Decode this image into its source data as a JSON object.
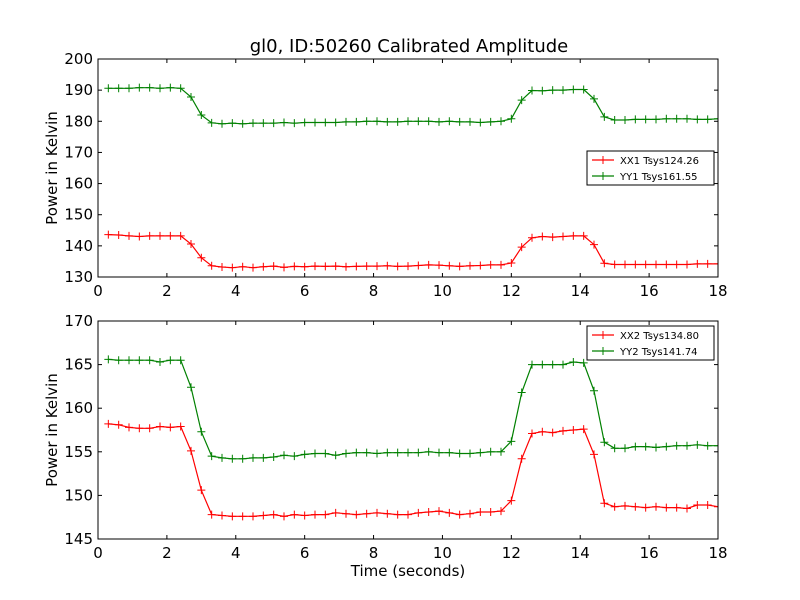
{
  "chart_data": [
    {
      "type": "line",
      "title": "gl0, ID:50260 Calibrated Amplitude",
      "xlabel": "",
      "ylabel": "Power in Kelvin",
      "xlim": [
        0,
        18
      ],
      "ylim": [
        130,
        200
      ],
      "xticks": [
        0,
        2,
        4,
        6,
        8,
        10,
        12,
        14,
        16,
        18
      ],
      "yticks": [
        130,
        140,
        150,
        160,
        170,
        180,
        190,
        200
      ],
      "legend_position": "right",
      "x": [
        0.3,
        0.6,
        0.9,
        1.2,
        1.5,
        1.8,
        2.1,
        2.4,
        2.7,
        3.0,
        3.3,
        3.6,
        3.9,
        4.2,
        4.5,
        4.8,
        5.1,
        5.4,
        5.7,
        6.0,
        6.3,
        6.6,
        6.9,
        7.2,
        7.5,
        7.8,
        8.1,
        8.4,
        8.7,
        9.0,
        9.3,
        9.6,
        9.9,
        10.2,
        10.5,
        10.8,
        11.1,
        11.4,
        11.7,
        12.0,
        12.3,
        12.6,
        12.9,
        13.2,
        13.5,
        13.8,
        14.1,
        14.4,
        14.7,
        15.0,
        15.3,
        15.6,
        15.9,
        16.2,
        16.5,
        16.8,
        17.1,
        17.4,
        17.7,
        18.0
      ],
      "series": [
        {
          "name": "XX1 Tsys124.26",
          "color": "#ff0000",
          "values": [
            143.6,
            143.5,
            143.2,
            143.0,
            143.2,
            143.2,
            143.2,
            143.2,
            140.6,
            136.2,
            133.6,
            133.2,
            133.0,
            133.3,
            133.0,
            133.3,
            133.5,
            133.1,
            133.4,
            133.3,
            133.5,
            133.4,
            133.5,
            133.3,
            133.4,
            133.5,
            133.5,
            133.6,
            133.4,
            133.5,
            133.7,
            133.9,
            133.8,
            133.6,
            133.4,
            133.6,
            133.7,
            133.9,
            133.9,
            134.5,
            139.6,
            142.6,
            143.0,
            142.8,
            143.0,
            143.2,
            143.2,
            140.4,
            134.4,
            134.0,
            134.0,
            134.0,
            134.0,
            134.0,
            134.0,
            134.0,
            134.0,
            134.2,
            134.2,
            134.2
          ]
        },
        {
          "name": "YY1 Tsys161.55",
          "color": "#008000",
          "values": [
            190.6,
            190.6,
            190.6,
            190.8,
            190.8,
            190.6,
            190.8,
            190.6,
            187.8,
            182.0,
            179.5,
            179.2,
            179.4,
            179.2,
            179.4,
            179.4,
            179.4,
            179.6,
            179.4,
            179.6,
            179.6,
            179.6,
            179.6,
            179.8,
            179.8,
            180.0,
            180.0,
            179.8,
            179.8,
            180.0,
            180.0,
            180.0,
            179.8,
            180.0,
            179.8,
            179.8,
            179.6,
            179.8,
            180.0,
            180.8,
            186.8,
            189.9,
            189.8,
            190.0,
            190.0,
            190.2,
            190.2,
            187.2,
            181.4,
            180.4,
            180.4,
            180.6,
            180.6,
            180.6,
            180.8,
            180.8,
            180.8,
            180.6,
            180.6,
            180.8
          ]
        }
      ]
    },
    {
      "type": "line",
      "title": "",
      "xlabel": "Time (seconds)",
      "ylabel": "Power in Kelvin",
      "xlim": [
        0,
        18
      ],
      "ylim": [
        145,
        170
      ],
      "xticks": [
        0,
        2,
        4,
        6,
        8,
        10,
        12,
        14,
        16,
        18
      ],
      "yticks": [
        145,
        150,
        155,
        160,
        165,
        170
      ],
      "legend_position": "top-right",
      "x": [
        0.3,
        0.6,
        0.9,
        1.2,
        1.5,
        1.8,
        2.1,
        2.4,
        2.7,
        3.0,
        3.3,
        3.6,
        3.9,
        4.2,
        4.5,
        4.8,
        5.1,
        5.4,
        5.7,
        6.0,
        6.3,
        6.6,
        6.9,
        7.2,
        7.5,
        7.8,
        8.1,
        8.4,
        8.7,
        9.0,
        9.3,
        9.6,
        9.9,
        10.2,
        10.5,
        10.8,
        11.1,
        11.4,
        11.7,
        12.0,
        12.3,
        12.6,
        12.9,
        13.2,
        13.5,
        13.8,
        14.1,
        14.4,
        14.7,
        15.0,
        15.3,
        15.6,
        15.9,
        16.2,
        16.5,
        16.8,
        17.1,
        17.4,
        17.7,
        18.0
      ],
      "series": [
        {
          "name": "XX2 Tsys134.80",
          "color": "#ff0000",
          "values": [
            158.2,
            158.1,
            157.8,
            157.7,
            157.7,
            157.9,
            157.8,
            157.9,
            155.1,
            150.6,
            147.8,
            147.7,
            147.6,
            147.6,
            147.6,
            147.7,
            147.8,
            147.6,
            147.8,
            147.7,
            147.8,
            147.8,
            148.0,
            147.9,
            147.8,
            147.9,
            148.0,
            147.9,
            147.8,
            147.8,
            148.0,
            148.1,
            148.2,
            148.0,
            147.8,
            147.9,
            148.1,
            148.1,
            148.2,
            149.4,
            154.2,
            157.1,
            157.3,
            157.2,
            157.4,
            157.5,
            157.6,
            154.7,
            149.1,
            148.7,
            148.8,
            148.7,
            148.6,
            148.7,
            148.6,
            148.6,
            148.5,
            148.9,
            148.9,
            148.7
          ]
        },
        {
          "name": "YY2 Tsys141.74",
          "color": "#008000",
          "values": [
            165.6,
            165.5,
            165.5,
            165.5,
            165.5,
            165.3,
            165.5,
            165.5,
            162.4,
            157.3,
            154.5,
            154.3,
            154.2,
            154.2,
            154.3,
            154.3,
            154.4,
            154.6,
            154.5,
            154.7,
            154.8,
            154.8,
            154.6,
            154.8,
            154.9,
            154.9,
            154.8,
            154.9,
            154.9,
            154.9,
            154.9,
            155.0,
            154.9,
            154.9,
            154.8,
            154.8,
            154.9,
            155.0,
            155.0,
            156.2,
            161.8,
            165.0,
            165.0,
            165.0,
            165.0,
            165.3,
            165.2,
            162.0,
            156.1,
            155.4,
            155.4,
            155.6,
            155.6,
            155.5,
            155.6,
            155.7,
            155.7,
            155.8,
            155.7,
            155.7
          ]
        }
      ]
    }
  ]
}
